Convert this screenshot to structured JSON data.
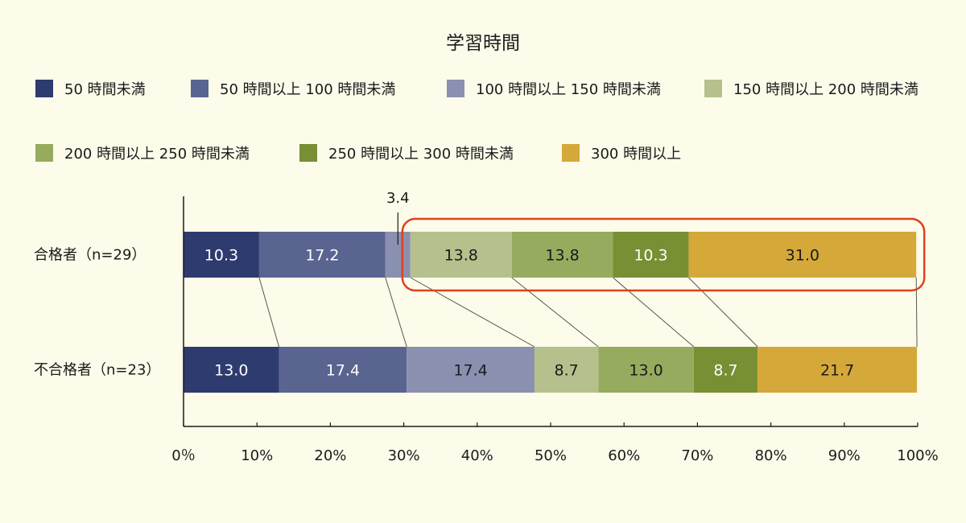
{
  "chart_data": {
    "type": "bar",
    "orientation": "horizontal",
    "stacked": true,
    "normalized_percent": true,
    "title": "学習時間",
    "categories": [
      "合格者（n=29）",
      "不合格者（n=23）"
    ],
    "series": [
      {
        "name": "50 時間未満",
        "color": "#2e3b6e",
        "values": [
          10.3,
          13.0
        ],
        "labels": [
          "10.3",
          "13.0"
        ],
        "label_color": "#ffffff"
      },
      {
        "name": "50 時間以上 100 時間未満",
        "color": "#5a6490",
        "values": [
          17.2,
          17.4
        ],
        "labels": [
          "17.2",
          "17.4"
        ],
        "label_color": "#ffffff"
      },
      {
        "name": "100 時間以上 150 時間未満",
        "color": "#8a90b0",
        "values": [
          3.4,
          17.4
        ],
        "labels": [
          "3.4",
          "17.4"
        ],
        "label_color": "#1a1a1a"
      },
      {
        "name": "150 時間以上 200 時間未満",
        "color": "#b5c08c",
        "values": [
          13.8,
          8.7
        ],
        "labels": [
          "13.8",
          "8.7"
        ],
        "label_color": "#1a1a1a"
      },
      {
        "name": "200 時間以上 250 時間未満",
        "color": "#97ab5e",
        "values": [
          13.8,
          13.0
        ],
        "labels": [
          "13.8",
          "13.0"
        ],
        "label_color": "#1a1a1a"
      },
      {
        "name": "250 時間以上 300 時間未満",
        "color": "#788f34",
        "values": [
          10.3,
          8.7
        ],
        "labels": [
          "10.3",
          "8.7"
        ],
        "label_color": "#ffffff"
      },
      {
        "name": "300 時間以上",
        "color": "#d5a83a",
        "values": [
          31.0,
          21.7
        ],
        "labels": [
          "31.0",
          "21.7"
        ],
        "label_color": "#1a1a1a"
      }
    ],
    "xlim": [
      0,
      100
    ],
    "x_ticks": [
      "0％",
      "10%",
      "20%",
      "30%",
      "40%",
      "50%",
      "60%",
      "70%",
      "80%",
      "90%",
      "100%"
    ],
    "legend_position": "top",
    "grid": false,
    "highlight": {
      "row": 0,
      "from_series": 3,
      "to_series": 6,
      "color": "#e0401f"
    }
  }
}
